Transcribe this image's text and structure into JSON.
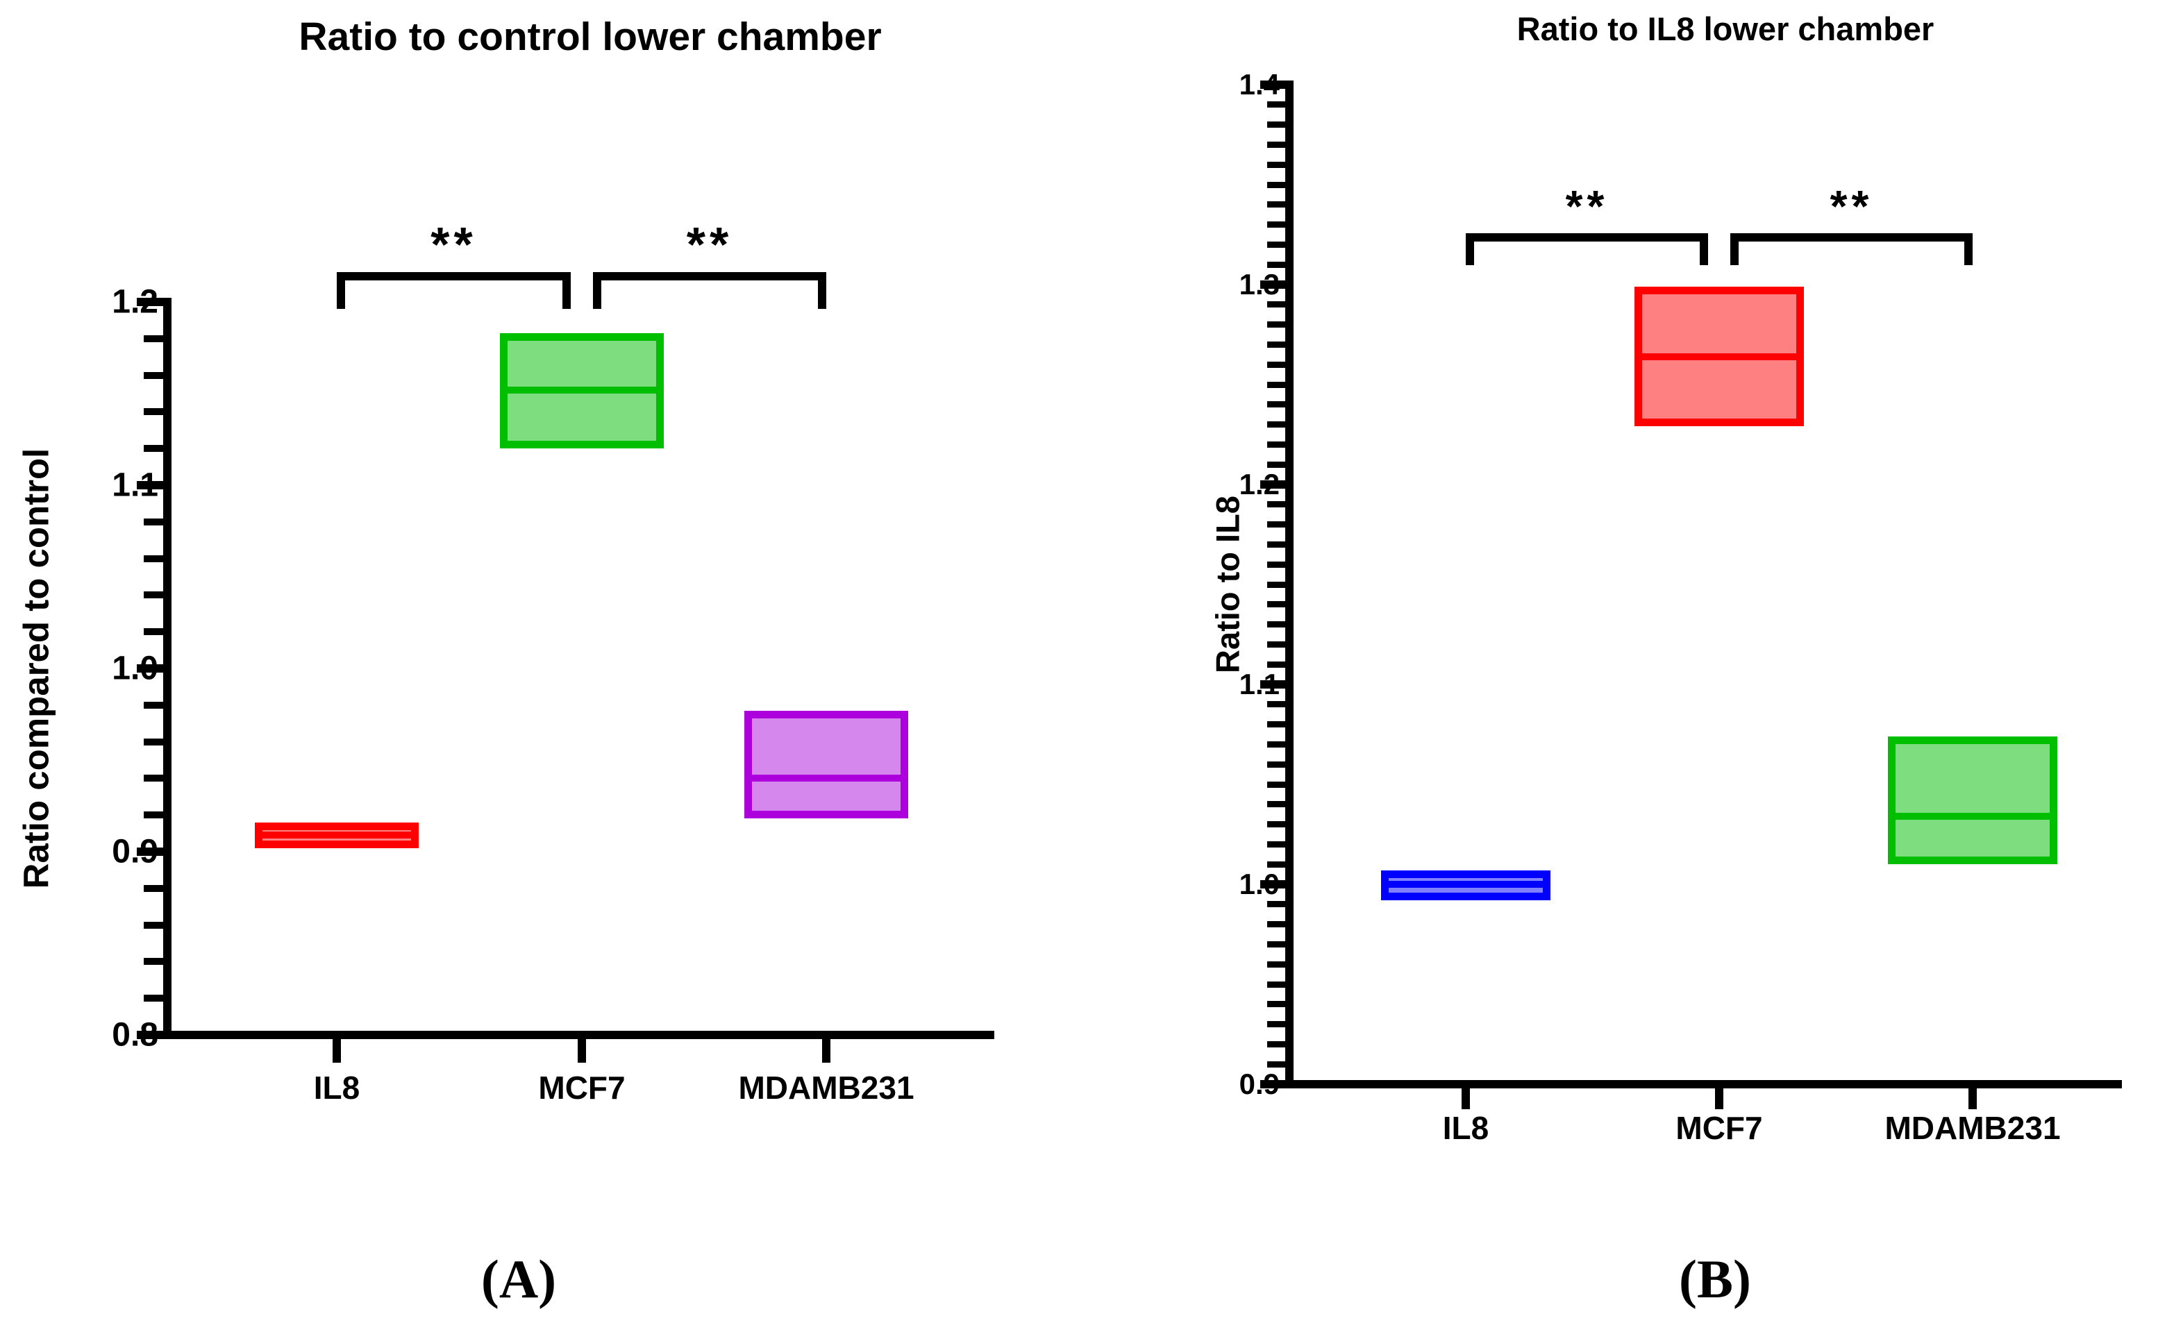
{
  "chart_data": [
    {
      "type": "box",
      "panel_label": "(A)",
      "title": "Ratio to control lower chamber",
      "xlabel": "",
      "ylabel": "Ratio compared to control",
      "categories": [
        "IL8",
        "MCF7",
        "MDAMB231"
      ],
      "ylim": [
        0.8,
        1.2
      ],
      "ytick_labels": [
        "0.8",
        "0.9",
        "1.0",
        "1.1",
        "1.2"
      ],
      "ymajor_step": 0.1,
      "yminor_step": 0.02,
      "grid": "off",
      "legend": "none",
      "boxes": [
        {
          "category": "IL8",
          "min": 0.902,
          "median": 0.909,
          "max": 0.916,
          "border_color": "#FF0000",
          "fill_color": "#FF8080"
        },
        {
          "category": "MCF7",
          "min": 1.12,
          "median": 1.152,
          "max": 1.183,
          "border_color": "#00BE00",
          "fill_color": "#7EDD7E"
        },
        {
          "category": "MDAMB231",
          "min": 0.918,
          "median": 0.94,
          "max": 0.977,
          "border_color": "#AC00DC",
          "fill_color": "#D587EE"
        }
      ],
      "significance": [
        {
          "between": [
            "IL8",
            "MCF7"
          ],
          "label": "**"
        },
        {
          "between": [
            "MCF7",
            "MDAMB231"
          ],
          "label": "**"
        }
      ]
    },
    {
      "type": "box",
      "panel_label": "(B)",
      "title": "Ratio to IL8 lower chamber",
      "xlabel": "",
      "ylabel": "Ratio to IL8",
      "categories": [
        "IL8",
        "MCF7",
        "MDAMB231"
      ],
      "ylim": [
        0.9,
        1.4
      ],
      "ytick_labels": [
        "0.9",
        "1.0",
        "1.1",
        "1.2",
        "1.3",
        "1.4"
      ],
      "ymajor_step": 0.1,
      "yminor_step": 0.01,
      "grid": "off",
      "legend": "none",
      "boxes": [
        {
          "category": "IL8",
          "min": 0.992,
          "median": 1.0,
          "max": 1.007,
          "border_color": "#0000FF",
          "fill_color": "#8181FF"
        },
        {
          "category": "MCF7",
          "min": 1.229,
          "median": 1.264,
          "max": 1.299,
          "border_color": "#FF0000",
          "fill_color": "#FF8080"
        },
        {
          "category": "MDAMB231",
          "min": 1.01,
          "median": 1.034,
          "max": 1.074,
          "border_color": "#00BE00",
          "fill_color": "#7EDD7E"
        }
      ],
      "significance": [
        {
          "between": [
            "IL8",
            "MCF7"
          ],
          "label": "**"
        },
        {
          "between": [
            "MCF7",
            "MDAMB231"
          ],
          "label": "**"
        }
      ]
    }
  ]
}
